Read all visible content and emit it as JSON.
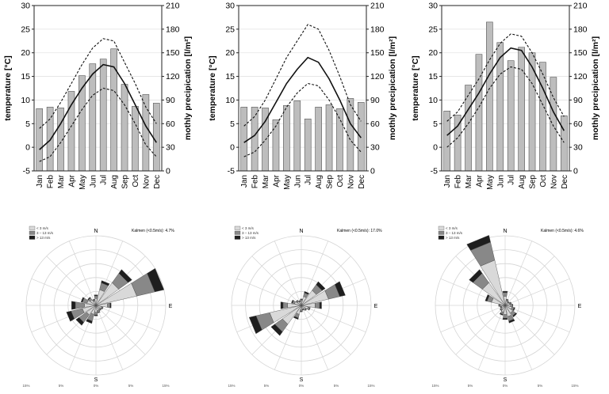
{
  "climate_labels": {
    "ylabel_left": "temperature [°C]",
    "ylabel_right": "mothly precipication [l/m²]"
  },
  "rose_labels": {
    "north": "N",
    "east": "E",
    "south": "S",
    "legend": [
      "< 3 m/s",
      "3 – 13 m/s",
      "> 13 m/s"
    ],
    "radial_ticks": [
      "15%",
      "5%",
      "0%",
      "5%",
      "15%"
    ]
  },
  "chart_data": [
    {
      "type": "bar",
      "overlay": "line",
      "categories": [
        "Jan",
        "Feb",
        "Mar",
        "Apr",
        "May",
        "Jun",
        "Jul",
        "Aug",
        "Sep",
        "Oct",
        "Nov",
        "Dec"
      ],
      "xlabel": "",
      "ylabel": "temperature [°C]",
      "ylabel_right": "mothly precipication [l/m²]",
      "ylim": [
        -5,
        30
      ],
      "yticks": [
        -5,
        0,
        5,
        10,
        15,
        20,
        25,
        30
      ],
      "y2lim": [
        0,
        210
      ],
      "y2ticks": [
        0,
        30,
        60,
        90,
        120,
        150,
        180,
        210
      ],
      "bar_axis": "right",
      "series": [
        {
          "kind": "bar",
          "values": [
            79,
            81,
            80,
            101,
            121,
            136,
            142,
            155,
            110,
            82,
            97,
            86
          ]
        },
        {
          "kind": "line",
          "style": "solid",
          "values": [
            -0.5,
            1.5,
            5,
            9,
            12.5,
            15.5,
            17.5,
            17,
            13.5,
            9,
            4.5,
            1
          ]
        },
        {
          "kind": "line",
          "style": "dashed",
          "values": [
            4,
            6,
            9.5,
            13.5,
            17.5,
            21,
            23,
            22.5,
            18,
            13.5,
            8.5,
            5
          ]
        },
        {
          "kind": "line",
          "style": "dashed",
          "values": [
            -3,
            -2,
            1,
            4.5,
            8,
            11,
            12.5,
            12,
            9,
            5,
            0.5,
            -2
          ]
        }
      ]
    },
    {
      "type": "bar",
      "overlay": "line",
      "categories": [
        "Jan",
        "Feb",
        "Mar",
        "Apr",
        "May",
        "Jun",
        "Jul",
        "Aug",
        "Sep",
        "Oct",
        "Nov",
        "Dec"
      ],
      "xlabel": "",
      "ylabel": "temperature [°C]",
      "ylabel_right": "mothly precipication [l/m²]",
      "ylim": [
        -5,
        30
      ],
      "yticks": [
        -5,
        0,
        5,
        10,
        15,
        20,
        25,
        30
      ],
      "y2lim": [
        0,
        210
      ],
      "y2ticks": [
        0,
        30,
        60,
        90,
        120,
        150,
        180,
        210
      ],
      "bar_axis": "right",
      "series": [
        {
          "kind": "bar",
          "values": [
            81,
            81,
            80,
            65,
            83,
            89,
            66,
            81,
            84,
            79,
            92,
            87
          ]
        },
        {
          "kind": "line",
          "style": "solid",
          "values": [
            1,
            2.5,
            5.5,
            9.5,
            13.5,
            16.5,
            19,
            18,
            14.5,
            10,
            5,
            2
          ]
        },
        {
          "kind": "line",
          "style": "dashed",
          "values": [
            4.5,
            6.5,
            10,
            14.5,
            19,
            22.5,
            26,
            25,
            20.5,
            15,
            9,
            5.5
          ]
        },
        {
          "kind": "line",
          "style": "dashed",
          "values": [
            -2,
            -1,
            1.5,
            4.5,
            8.5,
            11.5,
            13.5,
            13,
            10,
            6,
            1.5,
            -1
          ]
        }
      ]
    },
    {
      "type": "bar",
      "overlay": "line",
      "categories": [
        "Jan",
        "Feb",
        "Mar",
        "Apr",
        "May",
        "Jun",
        "Jul",
        "Aug",
        "Sep",
        "Oct",
        "Nov",
        "Dec"
      ],
      "xlabel": "",
      "ylabel": "temperature [°C]",
      "ylabel_right": "mothly precipication [l/m²]",
      "ylim": [
        -5,
        30
      ],
      "yticks": [
        -5,
        0,
        5,
        10,
        15,
        20,
        25,
        30
      ],
      "y2lim": [
        0,
        210
      ],
      "y2ticks": [
        0,
        30,
        60,
        90,
        120,
        150,
        180,
        210
      ],
      "bar_axis": "right",
      "series": [
        {
          "kind": "bar",
          "values": [
            76,
            71,
            109,
            148,
            189,
            163,
            140,
            157,
            150,
            138,
            119,
            70
          ]
        },
        {
          "kind": "line",
          "style": "solid",
          "values": [
            2.5,
            4.5,
            8,
            11.5,
            15.5,
            19,
            21,
            20.5,
            17,
            12.5,
            7.5,
            3.5
          ]
        },
        {
          "kind": "line",
          "style": "dashed",
          "values": [
            5.5,
            7.5,
            11,
            14.5,
            18.5,
            22,
            24,
            23.5,
            20,
            15.5,
            10.5,
            6.5
          ]
        },
        {
          "kind": "line",
          "style": "dashed",
          "values": [
            0,
            2,
            5,
            8.5,
            12.5,
            15.5,
            17,
            16.5,
            13.5,
            9,
            4.5,
            1
          ]
        }
      ]
    },
    {
      "type": "wind-rose",
      "calm_label": "Kalmen (<0.5m/s): 4.7%",
      "sectors": 16,
      "directions": [
        "N",
        "NNE",
        "NE",
        "ENE",
        "E",
        "ESE",
        "SE",
        "SSE",
        "S",
        "SSW",
        "SW",
        "WSW",
        "W",
        "WNW",
        "NW",
        "NNW"
      ],
      "rmax": 15,
      "series": [
        {
          "name": "< 3 m/s",
          "values": [
            1.5,
            3.5,
            6,
            9,
            2.5,
            1.2,
            1,
            1.2,
            1.5,
            2,
            2.5,
            3,
            2.5,
            2,
            1.5,
            1
          ]
        },
        {
          "name": "3 – 13 m/s",
          "values": [
            0.6,
            1.5,
            2.5,
            4,
            0.6,
            0.3,
            0.3,
            0.4,
            0.6,
            1.5,
            2,
            2.5,
            2,
            1,
            0.5,
            0.3
          ]
        },
        {
          "name": "> 13 m/s",
          "values": [
            0.2,
            0.5,
            1,
            2,
            0.2,
            0.1,
            0.1,
            0.1,
            0.2,
            0.5,
            0.8,
            1,
            0.8,
            0.3,
            0.2,
            0.1
          ]
        }
      ]
    },
    {
      "type": "wind-rose",
      "calm_label": "Kalmen (<0.5m/s): 17.0%",
      "sectors": 16,
      "directions": [
        "N",
        "NNE",
        "NE",
        "ENE",
        "E",
        "ESE",
        "SE",
        "SSE",
        "S",
        "SSW",
        "SW",
        "WSW",
        "W",
        "WNW",
        "NW",
        "NNW"
      ],
      "rmax": 15,
      "series": [
        {
          "name": "< 3 m/s",
          "values": [
            1,
            2,
            4,
            6,
            3,
            1.5,
            1,
            0.8,
            1,
            2,
            5,
            7,
            3,
            1.5,
            1,
            0.8
          ]
        },
        {
          "name": "3 – 13 m/s",
          "values": [
            0.3,
            0.8,
            1.5,
            2.5,
            1,
            0.4,
            0.3,
            0.2,
            0.3,
            0.8,
            2,
            3,
            1,
            0.5,
            0.3,
            0.2
          ]
        },
        {
          "name": "> 13 m/s",
          "values": [
            0.1,
            0.3,
            0.8,
            1.2,
            0.4,
            0.1,
            0.1,
            0.1,
            0.1,
            0.3,
            1,
            1.5,
            0.5,
            0.2,
            0.1,
            0.1
          ]
        }
      ]
    },
    {
      "type": "wind-rose",
      "calm_label": "Kalmen (<0.5m/s): 4.6%",
      "sectors": 16,
      "directions": [
        "N",
        "NNE",
        "NE",
        "ENE",
        "E",
        "ESE",
        "SE",
        "SSE",
        "S",
        "SSW",
        "SW",
        "WSW",
        "W",
        "WNW",
        "NW",
        "NNW"
      ],
      "rmax": 15,
      "series": [
        {
          "name": "< 3 m/s",
          "values": [
            2,
            1,
            0.8,
            1,
            1.2,
            1.5,
            2,
            2.5,
            2,
            1.5,
            1,
            0.8,
            1,
            3,
            6,
            10
          ]
        },
        {
          "name": "3 – 13 m/s",
          "values": [
            0.8,
            0.3,
            0.2,
            0.3,
            0.4,
            0.5,
            0.8,
            1,
            0.8,
            0.5,
            0.3,
            0.2,
            0.3,
            1,
            2.5,
            4
          ]
        },
        {
          "name": "> 13 m/s",
          "values": [
            0.3,
            0.1,
            0.1,
            0.1,
            0.1,
            0.2,
            0.3,
            0.4,
            0.3,
            0.2,
            0.1,
            0.1,
            0.1,
            0.4,
            1,
            1.5
          ]
        }
      ]
    }
  ]
}
